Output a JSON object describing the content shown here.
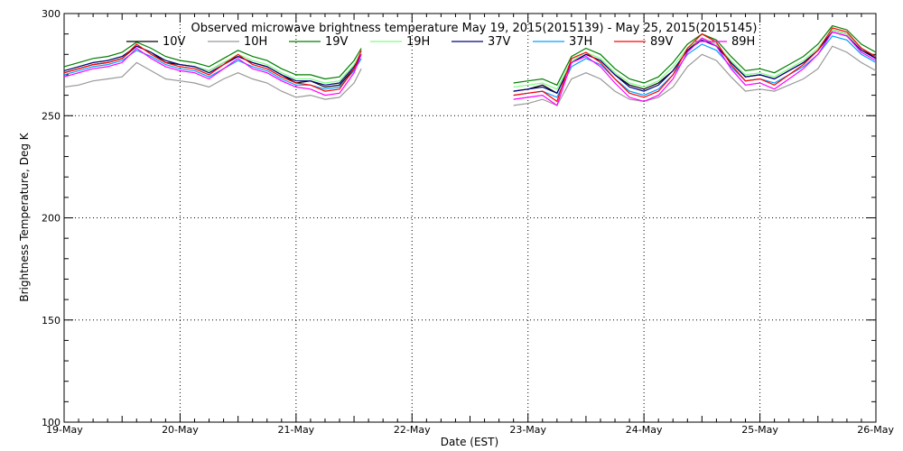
{
  "chart_data": {
    "type": "line",
    "title": "Observed microwave brightness temperature May 19, 2015(2015139) - May 25, 2015(2015145)",
    "xlabel": "Date (EST)",
    "ylabel": "Brightness Temperature, Deg K",
    "ylim": [
      100,
      300
    ],
    "yticks": [
      100,
      150,
      200,
      250,
      300
    ],
    "xlim": [
      "2015-05-19",
      "2015-05-26"
    ],
    "xticks": [
      "19-May",
      "20-May",
      "21-May",
      "22-May",
      "23-May",
      "24-May",
      "25-May",
      "26-May"
    ],
    "grid": true,
    "legend_position": "top",
    "x_dates": [
      "2015-05-19T00:00",
      "2015-05-19T03:00",
      "2015-05-19T06:00",
      "2015-05-19T09:00",
      "2015-05-19T12:00",
      "2015-05-19T15:00",
      "2015-05-19T18:00",
      "2015-05-19T21:00",
      "2015-05-20T00:00",
      "2015-05-20T03:00",
      "2015-05-20T06:00",
      "2015-05-20T09:00",
      "2015-05-20T12:00",
      "2015-05-20T15:00",
      "2015-05-20T18:00",
      "2015-05-20T21:00",
      "2015-05-21T00:00",
      "2015-05-21T03:00",
      "2015-05-21T06:00",
      "2015-05-21T09:00",
      "2015-05-21T12:00",
      "2015-05-21T13:30",
      "2015-05-22T21:00",
      "2015-05-23T00:00",
      "2015-05-23T03:00",
      "2015-05-23T06:00",
      "2015-05-23T09:00",
      "2015-05-23T12:00",
      "2015-05-23T15:00",
      "2015-05-23T18:00",
      "2015-05-23T21:00",
      "2015-05-24T00:00",
      "2015-05-24T03:00",
      "2015-05-24T06:00",
      "2015-05-24T09:00",
      "2015-05-24T12:00",
      "2015-05-24T15:00",
      "2015-05-24T18:00",
      "2015-05-24T21:00",
      "2015-05-25T00:00",
      "2015-05-25T03:00",
      "2015-05-25T06:00",
      "2015-05-25T09:00",
      "2015-05-25T12:00",
      "2015-05-25T15:00",
      "2015-05-25T18:00",
      "2015-05-25T21:00",
      "2015-05-26T00:00"
    ],
    "series": [
      {
        "name": "10V",
        "color": "#000000",
        "values": [
          271,
          273,
          275,
          276,
          278,
          284,
          281,
          276,
          275,
          274,
          272,
          276,
          279,
          276,
          274,
          270,
          266,
          267,
          264,
          265,
          273,
          280,
          262,
          263,
          265,
          261,
          276,
          280,
          277,
          270,
          265,
          263,
          266,
          272,
          282,
          288,
          285,
          276,
          269,
          270,
          268,
          272,
          276,
          282,
          292,
          290,
          283,
          278
        ]
      },
      {
        "name": "10H",
        "color": "#999999",
        "values": [
          264,
          265,
          267,
          268,
          269,
          276,
          272,
          268,
          267,
          266,
          264,
          268,
          271,
          268,
          266,
          262,
          259,
          260,
          258,
          259,
          266,
          273,
          255,
          256,
          258,
          255,
          268,
          271,
          268,
          262,
          258,
          257,
          259,
          264,
          274,
          280,
          277,
          269,
          262,
          263,
          262,
          265,
          268,
          273,
          284,
          281,
          276,
          272
        ]
      },
      {
        "name": "19V",
        "color": "#007f00",
        "values": [
          274,
          276,
          278,
          279,
          281,
          286,
          283,
          279,
          277,
          276,
          274,
          278,
          282,
          279,
          277,
          273,
          270,
          270,
          268,
          269,
          277,
          283,
          266,
          267,
          268,
          265,
          279,
          283,
          280,
          273,
          268,
          266,
          269,
          276,
          285,
          290,
          287,
          279,
          272,
          273,
          271,
          275,
          279,
          285,
          294,
          292,
          285,
          281
        ]
      },
      {
        "name": "19H",
        "color": "#7fff7f",
        "values": [
          272,
          274,
          276,
          277,
          279,
          284,
          281,
          277,
          275,
          274,
          272,
          276,
          280,
          277,
          275,
          271,
          268,
          268,
          266,
          267,
          275,
          281,
          264,
          265,
          266,
          263,
          277,
          281,
          278,
          271,
          266,
          264,
          267,
          274,
          283,
          288,
          285,
          277,
          270,
          271,
          269,
          273,
          277,
          283,
          292,
          290,
          283,
          279
        ]
      },
      {
        "name": "37V",
        "color": "#00007f",
        "values": [
          272,
          274,
          276,
          277,
          279,
          284,
          281,
          277,
          275,
          274,
          271,
          275,
          279,
          276,
          274,
          270,
          267,
          267,
          265,
          266,
          274,
          280,
          262,
          263,
          264,
          261,
          276,
          280,
          277,
          270,
          264,
          262,
          265,
          272,
          282,
          287,
          284,
          276,
          269,
          270,
          268,
          272,
          276,
          282,
          291,
          289,
          282,
          278
        ]
      },
      {
        "name": "37H",
        "color": "#00a0ff",
        "values": [
          270,
          272,
          274,
          275,
          277,
          282,
          279,
          275,
          273,
          272,
          269,
          273,
          277,
          274,
          272,
          268,
          265,
          265,
          263,
          264,
          272,
          278,
          260,
          261,
          262,
          259,
          274,
          278,
          275,
          268,
          262,
          260,
          263,
          270,
          280,
          285,
          282,
          274,
          267,
          268,
          266,
          270,
          274,
          280,
          289,
          287,
          280,
          276
        ]
      },
      {
        "name": "89V",
        "color": "#ff0000",
        "values": [
          271,
          273,
          275,
          276,
          278,
          285,
          280,
          276,
          274,
          273,
          270,
          275,
          280,
          275,
          273,
          269,
          266,
          265,
          262,
          263,
          273,
          282,
          260,
          261,
          262,
          257,
          278,
          281,
          276,
          268,
          261,
          259,
          262,
          270,
          283,
          290,
          286,
          275,
          267,
          268,
          265,
          270,
          275,
          282,
          293,
          291,
          283,
          279
        ]
      },
      {
        "name": "89H",
        "color": "#ff00ff",
        "values": [
          269,
          271,
          273,
          274,
          276,
          283,
          278,
          274,
          272,
          271,
          268,
          273,
          278,
          273,
          271,
          267,
          264,
          263,
          260,
          261,
          271,
          280,
          258,
          259,
          260,
          255,
          276,
          279,
          274,
          266,
          259,
          257,
          260,
          268,
          281,
          288,
          284,
          273,
          265,
          266,
          263,
          268,
          273,
          280,
          291,
          289,
          281,
          277
        ]
      }
    ]
  }
}
